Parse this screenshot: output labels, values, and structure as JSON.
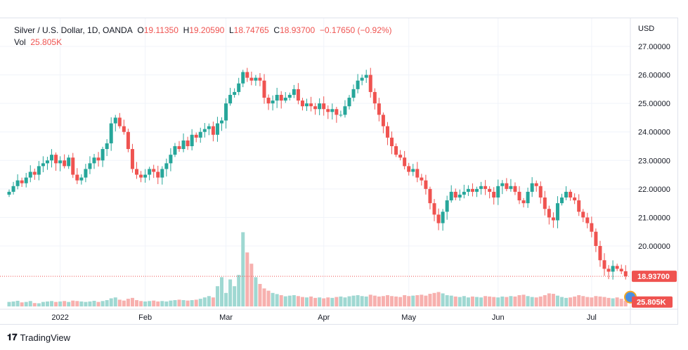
{
  "legend": {
    "symbol": "Silver / U.S. Dollar, 1D, OANDA",
    "o_label": "O",
    "o": "19.11350",
    "h_label": "H",
    "h": "19.20590",
    "l_label": "L",
    "l": "18.74765",
    "c_label": "C",
    "c": "18.93700",
    "change": "−0.17650 (−0.92%)",
    "vol_label": "Vol",
    "vol": "25.805K"
  },
  "branding": "TradingView",
  "colors": {
    "up": "#26a69a",
    "down": "#ef5350",
    "up_vol": "#9fd8d2",
    "down_vol": "#f7b0ae"
  },
  "chart_data": {
    "type": "candlestick",
    "currency": "USD",
    "ylim": [
      18.6,
      27.2
    ],
    "y_ticks": [
      "27.00000",
      "26.00000",
      "25.00000",
      "24.00000",
      "23.00000",
      "22.00000",
      "21.00000",
      "20.00000"
    ],
    "x_ticks": [
      {
        "label": "2022",
        "index": 12
      },
      {
        "label": "Feb",
        "index": 32
      },
      {
        "label": "Mar",
        "index": 51
      },
      {
        "label": "Apr",
        "index": 74
      },
      {
        "label": "May",
        "index": 94
      },
      {
        "label": "Jun",
        "index": 115
      },
      {
        "label": "Jul",
        "index": 137
      }
    ],
    "last_price": "18.93700",
    "last_volume": "25.805K",
    "closes": [
      21.9,
      22.1,
      22.3,
      22.2,
      22.4,
      22.6,
      22.5,
      22.8,
      22.9,
      23.0,
      23.2,
      22.9,
      23.0,
      22.8,
      23.1,
      22.5,
      22.3,
      22.4,
      22.7,
      22.9,
      23.1,
      23.0,
      23.4,
      23.6,
      24.3,
      24.5,
      24.2,
      24.0,
      23.4,
      22.7,
      22.5,
      22.4,
      22.5,
      22.7,
      22.6,
      22.4,
      22.7,
      22.9,
      23.2,
      23.5,
      23.4,
      23.7,
      23.5,
      23.9,
      23.8,
      24.0,
      24.1,
      24.2,
      23.9,
      24.3,
      24.4,
      25.0,
      25.3,
      25.4,
      25.7,
      26.1,
      25.9,
      25.8,
      25.9,
      25.8,
      25.2,
      25.0,
      25.1,
      25.3,
      25.1,
      25.2,
      25.3,
      25.5,
      25.1,
      24.9,
      25.0,
      24.9,
      24.8,
      25.0,
      24.8,
      24.7,
      24.8,
      24.6,
      24.6,
      24.9,
      25.2,
      25.5,
      25.8,
      25.9,
      26.0,
      25.4,
      25.0,
      24.6,
      24.2,
      23.8,
      23.5,
      23.2,
      23.1,
      22.8,
      22.6,
      22.7,
      22.4,
      22.3,
      22.0,
      21.5,
      21.1,
      20.8,
      21.2,
      21.6,
      21.9,
      21.7,
      21.8,
      21.9,
      22.0,
      21.9,
      22.0,
      22.1,
      22.0,
      21.9,
      21.7,
      22.1,
      22.2,
      22.0,
      22.1,
      21.9,
      21.6,
      21.5,
      21.9,
      22.2,
      22.1,
      21.7,
      21.3,
      21.0,
      20.9,
      21.5,
      21.7,
      21.9,
      21.7,
      21.6,
      21.2,
      21.0,
      20.8,
      20.5,
      20.0,
      19.5,
      19.2,
      19.1,
      19.3,
      19.2,
      19.11,
      18.937
    ],
    "volumes_k": [
      20,
      22,
      25,
      18,
      20,
      24,
      15,
      14,
      20,
      22,
      24,
      20,
      22,
      24,
      20,
      26,
      24,
      22,
      20,
      22,
      25,
      20,
      24,
      28,
      36,
      40,
      30,
      26,
      34,
      38,
      28,
      24,
      22,
      24,
      26,
      22,
      24,
      22,
      26,
      28,
      30,
      28,
      26,
      28,
      30,
      34,
      40,
      46,
      40,
      90,
      130,
      60,
      120,
      90,
      140,
      330,
      240,
      190,
      130,
      100,
      80,
      70,
      60,
      55,
      50,
      45,
      48,
      50,
      46,
      42,
      40,
      44,
      38,
      40,
      36,
      40,
      38,
      42,
      44,
      40,
      45,
      48,
      50,
      46,
      44,
      52,
      48,
      44,
      46,
      50,
      46,
      44,
      42,
      50,
      46,
      48,
      50,
      52,
      48,
      56,
      60,
      64,
      58,
      50,
      48,
      44,
      42,
      46,
      40,
      44,
      42,
      40,
      46,
      44,
      42,
      40,
      44,
      42,
      46,
      44,
      50,
      52,
      46,
      42,
      40,
      44,
      50,
      58,
      56,
      48,
      42,
      38,
      40,
      44,
      50,
      46,
      42,
      40,
      46,
      44,
      42,
      38,
      36,
      40,
      34,
      25.8
    ]
  }
}
